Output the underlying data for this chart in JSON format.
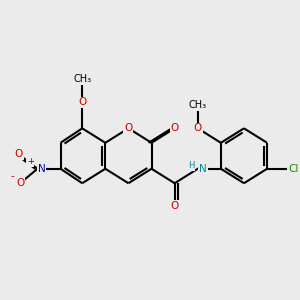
{
  "bg_color": "#ebebeb",
  "atom_colors": {
    "C": "#000000",
    "O": "#cc0000",
    "N_nitro": "#0000cc",
    "N_amide": "#008899",
    "Cl": "#228800",
    "H": "#008899"
  },
  "bond_color": "#000000",
  "bond_width": 1.5,
  "fig_w": 3.0,
  "fig_h": 3.0,
  "dpi": 100,
  "xlim": [
    0,
    10
  ],
  "ylim": [
    0,
    10
  ]
}
